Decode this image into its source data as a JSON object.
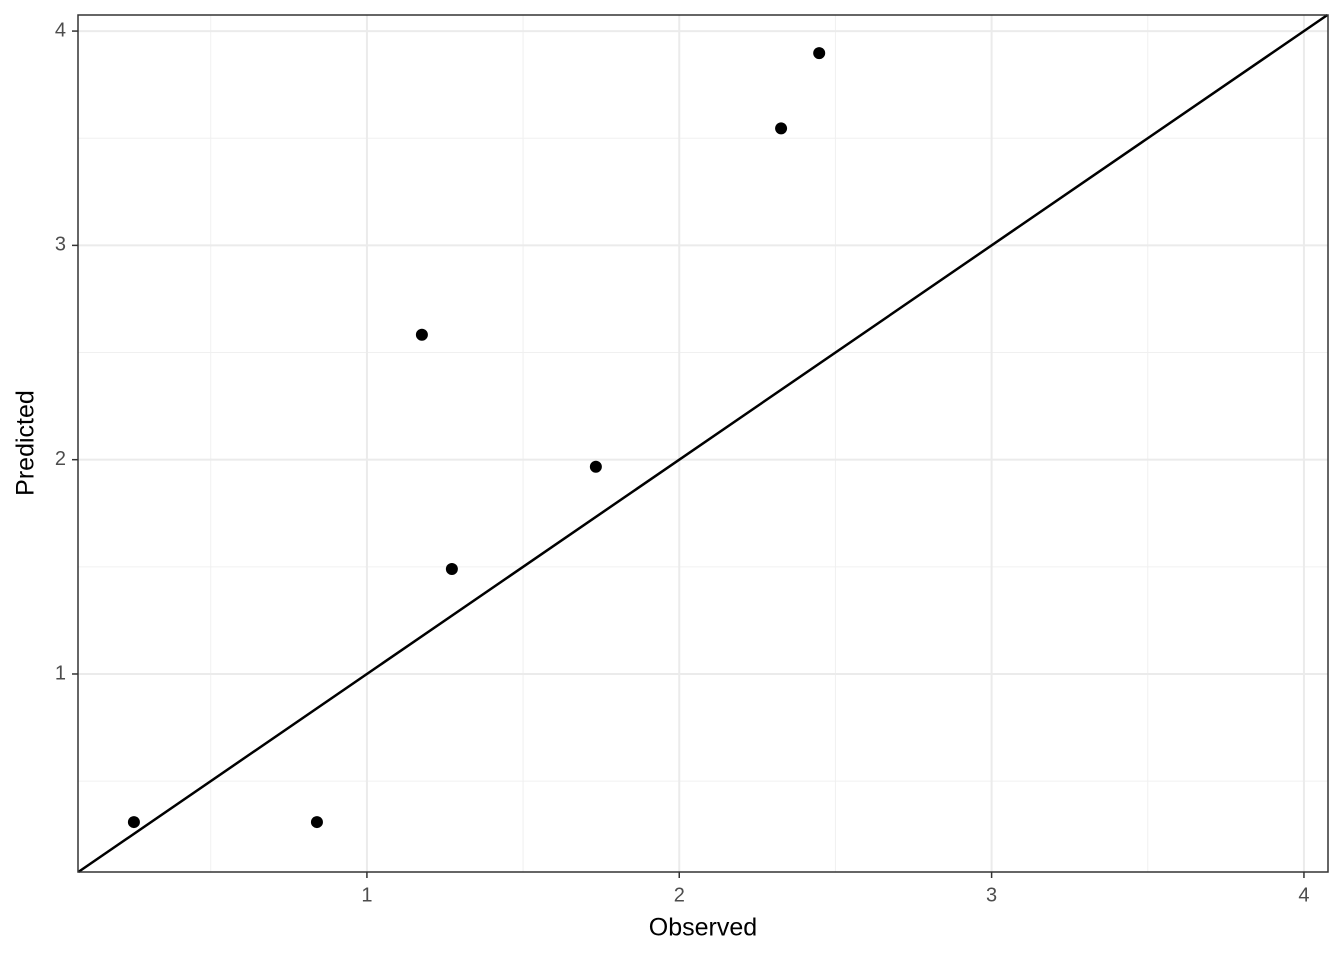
{
  "chart_data": {
    "type": "scatter",
    "x_label": "Observed",
    "y_label": "Predicted",
    "x": [
      0.254,
      0.84,
      1.176,
      1.272,
      1.733,
      2.326,
      2.448
    ],
    "values": [
      0.309,
      0.309,
      2.583,
      1.49,
      1.967,
      3.546,
      3.897
    ],
    "color": "#000000",
    "xlim": [
      0.075,
      4.077
    ],
    "ylim": [
      0.076,
      4.075
    ],
    "xticks": [
      1,
      2,
      3,
      4
    ],
    "yticks": [
      1,
      2,
      3,
      4
    ],
    "minor_xticks": [
      0.5,
      1.5,
      2.5,
      3.5
    ],
    "minor_yticks": [
      0.5,
      1.5,
      2.5,
      3.5
    ],
    "grid": true,
    "identity_line": true
  }
}
